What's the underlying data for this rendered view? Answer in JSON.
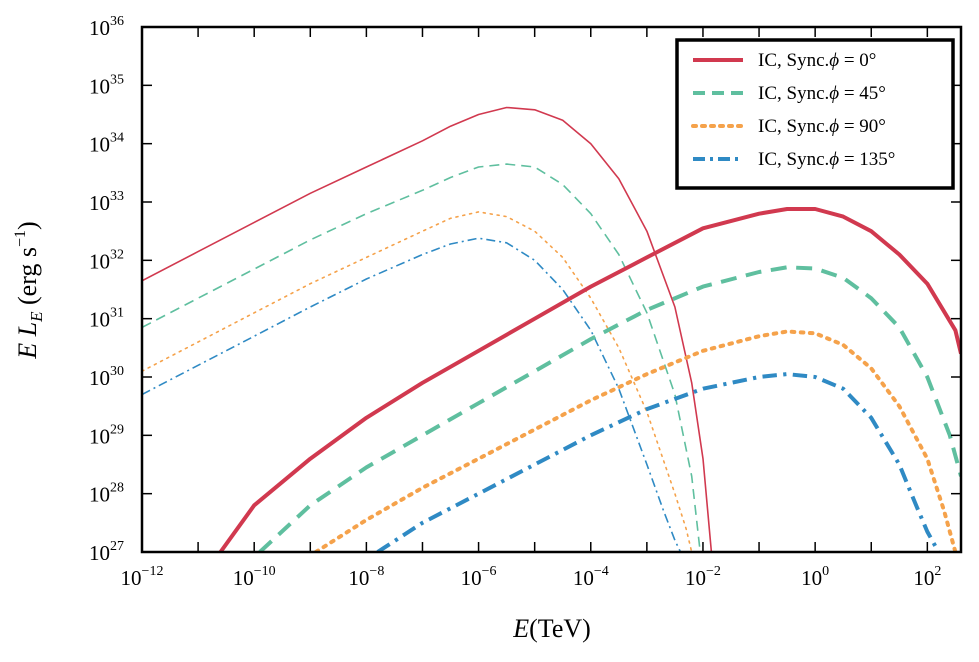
{
  "chart_data": {
    "type": "line",
    "title": "",
    "xlabel": {
      "italic": "E",
      "rest": "(TeV)"
    },
    "ylabel": {
      "italic_e": "E",
      "italic_l": "L",
      "sub": "E",
      "unit": "(erg s",
      "unit_sup": "−1",
      "unit_close": ")"
    },
    "xscale": "log",
    "yscale": "log",
    "xlim_log10": [
      -12,
      2.6
    ],
    "ylim_log10": [
      27,
      36
    ],
    "x_ticks": [
      {
        "base": "10",
        "exp": "−12"
      },
      {
        "base": "10",
        "exp": "−10"
      },
      {
        "base": "10",
        "exp": "−8"
      },
      {
        "base": "10",
        "exp": "−6"
      },
      {
        "base": "10",
        "exp": "−4"
      },
      {
        "base": "10",
        "exp": "−2"
      },
      {
        "base": "10",
        "exp": "0"
      },
      {
        "base": "10",
        "exp": "2"
      }
    ],
    "x_tick_log10": [
      -12,
      -10,
      -8,
      -6,
      -4,
      -2,
      0,
      2
    ],
    "y_ticks": [
      {
        "base": "10",
        "exp": "27"
      },
      {
        "base": "10",
        "exp": "28"
      },
      {
        "base": "10",
        "exp": "29"
      },
      {
        "base": "10",
        "exp": "30"
      },
      {
        "base": "10",
        "exp": "31"
      },
      {
        "base": "10",
        "exp": "32"
      },
      {
        "base": "10",
        "exp": "33"
      },
      {
        "base": "10",
        "exp": "34"
      },
      {
        "base": "10",
        "exp": "35"
      },
      {
        "base": "10",
        "exp": "36"
      }
    ],
    "y_tick_log10": [
      27,
      28,
      29,
      30,
      31,
      32,
      33,
      34,
      35,
      36
    ],
    "legend": {
      "position": "top-right",
      "entries": [
        {
          "label": "IC, Sync.",
          "phi": "ϕ",
          "eq": " = 0°"
        },
        {
          "label": "IC, Sync.",
          "phi": "ϕ",
          "eq": " = 45°"
        },
        {
          "label": "IC, Sync.",
          "phi": "ϕ",
          "eq": " = 90°"
        },
        {
          "label": "IC, Sync.",
          "phi": "ϕ",
          "eq": " = 135°"
        }
      ]
    },
    "series": [
      {
        "name": "Sync. phi=0",
        "component": "synchrotron",
        "color": "#d1394f",
        "style": "solid",
        "log_x": [
          -12,
          -11,
          -10,
          -9,
          -8,
          -7,
          -6.5,
          -6,
          -5.5,
          -5,
          -4.5,
          -4,
          -3.5,
          -3,
          -2.5,
          -2.2,
          -2,
          -1.85
        ],
        "log_y": [
          31.65,
          32.15,
          32.65,
          33.15,
          33.6,
          34.05,
          34.3,
          34.5,
          34.62,
          34.58,
          34.4,
          34.0,
          33.4,
          32.5,
          31.2,
          29.9,
          28.6,
          27.0
        ]
      },
      {
        "name": "Sync. phi=45",
        "component": "synchrotron",
        "color": "#5fbf9f",
        "style": "dashed",
        "log_x": [
          -12,
          -11,
          -10,
          -9,
          -8,
          -7,
          -6.5,
          -6,
          -5.5,
          -5,
          -4.5,
          -4,
          -3.5,
          -3,
          -2.5,
          -2.2,
          -2.05
        ],
        "log_y": [
          30.85,
          31.35,
          31.85,
          32.35,
          32.8,
          33.2,
          33.42,
          33.6,
          33.65,
          33.6,
          33.3,
          32.8,
          32.1,
          31.1,
          29.7,
          28.3,
          27.0
        ]
      },
      {
        "name": "Sync. phi=90",
        "component": "synchrotron",
        "color": "#f5a24b",
        "style": "dotted",
        "log_x": [
          -12,
          -11,
          -10,
          -9,
          -8,
          -7,
          -6.5,
          -6,
          -5.5,
          -5,
          -4.5,
          -4,
          -3.5,
          -3,
          -2.5,
          -2.3,
          -2.2
        ],
        "log_y": [
          30.1,
          30.6,
          31.1,
          31.6,
          32.05,
          32.5,
          32.72,
          32.83,
          32.75,
          32.5,
          32.05,
          31.35,
          30.5,
          29.4,
          28.0,
          27.4,
          27.0
        ]
      },
      {
        "name": "Sync. phi=135",
        "component": "synchrotron",
        "color": "#2f8ac4",
        "style": "dashdot",
        "log_x": [
          -12,
          -11,
          -10,
          -9,
          -8,
          -7,
          -6.5,
          -6,
          -5.5,
          -5,
          -4.5,
          -4,
          -3.5,
          -3,
          -2.7,
          -2.5,
          -2.4
        ],
        "log_y": [
          29.7,
          30.2,
          30.7,
          31.2,
          31.68,
          32.1,
          32.28,
          32.38,
          32.3,
          32.0,
          31.5,
          30.8,
          29.8,
          28.5,
          27.7,
          27.2,
          27.0
        ]
      },
      {
        "name": "IC phi=0",
        "component": "inverse-compton",
        "color": "#d1394f",
        "style": "solid",
        "log_x": [
          -10.6,
          -10,
          -9,
          -8,
          -7,
          -6,
          -5,
          -4,
          -3,
          -2,
          -1,
          -0.5,
          0,
          0.5,
          1,
          1.5,
          2,
          2.5,
          2.6
        ],
        "log_y": [
          27.0,
          27.8,
          28.6,
          29.3,
          29.9,
          30.45,
          31.0,
          31.55,
          32.05,
          32.55,
          32.8,
          32.88,
          32.88,
          32.75,
          32.5,
          32.1,
          31.6,
          30.8,
          30.4
        ]
      },
      {
        "name": "IC phi=45",
        "component": "inverse-compton",
        "color": "#5fbf9f",
        "style": "dashed",
        "log_x": [
          -9.9,
          -9,
          -8,
          -7,
          -6,
          -5,
          -4,
          -3,
          -2,
          -1,
          -0.5,
          0,
          0.5,
          1,
          1.5,
          2,
          2.4,
          2.6
        ],
        "log_y": [
          27.0,
          27.8,
          28.45,
          29.0,
          29.55,
          30.1,
          30.65,
          31.15,
          31.55,
          31.8,
          31.88,
          31.86,
          31.7,
          31.35,
          30.85,
          30.0,
          29.0,
          28.3
        ]
      },
      {
        "name": "IC phi=90",
        "component": "inverse-compton",
        "color": "#f5a24b",
        "style": "dotted",
        "log_x": [
          -8.9,
          -8,
          -7,
          -6,
          -5,
          -4,
          -3,
          -2,
          -1,
          -0.5,
          0,
          0.5,
          1,
          1.5,
          2,
          2.3,
          2.5
        ],
        "log_y": [
          27.0,
          27.55,
          28.1,
          28.6,
          29.1,
          29.6,
          30.05,
          30.45,
          30.7,
          30.78,
          30.75,
          30.55,
          30.15,
          29.5,
          28.6,
          27.7,
          27.0
        ]
      },
      {
        "name": "IC phi=135",
        "component": "inverse-compton",
        "color": "#2f8ac4",
        "style": "dashdot",
        "log_x": [
          -7.8,
          -7,
          -6,
          -5,
          -4,
          -3,
          -2,
          -1,
          -0.5,
          0,
          0.5,
          1,
          1.5,
          1.8,
          2.0,
          2.2
        ],
        "log_y": [
          27.0,
          27.5,
          28.0,
          28.5,
          29.0,
          29.45,
          29.8,
          30.0,
          30.05,
          30.0,
          29.8,
          29.3,
          28.5,
          27.8,
          27.35,
          27.0
        ]
      }
    ]
  }
}
